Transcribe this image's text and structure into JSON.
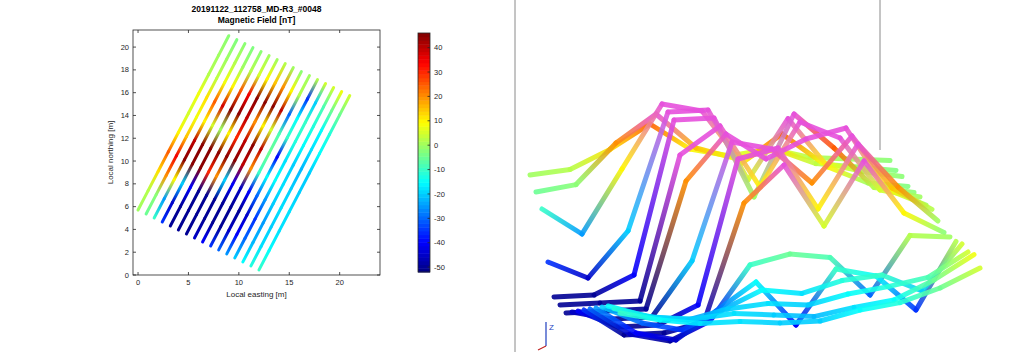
{
  "chart_data": {
    "type": "line",
    "title": "20191122_112758_MD-R3_#0048",
    "subtitle": "Magnetic Field [nT]",
    "x_label": "Local easting [m]",
    "y_label": "Local northing [m]",
    "xlim": [
      -0.5,
      24
    ],
    "ylim": [
      0,
      21.5
    ],
    "xticks": [
      0,
      5,
      10,
      15,
      20
    ],
    "yticks": [
      0,
      2,
      4,
      6,
      8,
      10,
      12,
      14,
      16,
      18,
      20
    ],
    "grid": false,
    "colorbar": {
      "range": [
        -52,
        46
      ],
      "ticks": [
        -50,
        -40,
        -30,
        -20,
        -10,
        0,
        10,
        20,
        30,
        40
      ]
    },
    "view_3d": {
      "axis_label": "Z"
    },
    "tracks": [
      {
        "x": [
          0,
          1,
          2,
          3,
          4,
          5,
          6,
          7,
          8,
          9
        ],
        "y": [
          5.7,
          7.4,
          9.1,
          10.8,
          12.5,
          14.2,
          15.9,
          17.6,
          19.3,
          21.0
        ],
        "values": [
          0,
          2,
          12,
          25,
          10,
          5,
          8,
          2,
          0,
          -2
        ]
      },
      {
        "x": [
          0.8,
          1.8,
          2.8,
          3.8,
          4.8,
          5.8,
          6.8,
          7.8,
          8.8,
          9.8
        ],
        "y": [
          5.35,
          7.05,
          8.75,
          10.45,
          12.15,
          13.85,
          15.55,
          17.25,
          18.95,
          20.65
        ],
        "values": [
          -5,
          -2,
          20,
          35,
          15,
          8,
          12,
          3,
          0,
          -3
        ]
      },
      {
        "x": [
          1.6,
          2.6,
          3.6,
          4.6,
          5.6,
          6.6,
          7.6,
          8.6,
          9.6,
          10.6
        ],
        "y": [
          5.0,
          6.7,
          8.4,
          10.1,
          11.8,
          13.5,
          15.2,
          16.9,
          18.6,
          20.3
        ],
        "values": [
          -10,
          -25,
          10,
          45,
          40,
          10,
          25,
          8,
          2,
          -2
        ]
      },
      {
        "x": [
          2.4,
          3.4,
          4.4,
          5.4,
          6.4,
          7.4,
          8.4,
          9.4,
          10.4,
          11.4
        ],
        "y": [
          4.65,
          6.35,
          8.05,
          9.75,
          11.45,
          13.15,
          14.85,
          16.55,
          18.25,
          19.95
        ],
        "values": [
          -35,
          -45,
          -20,
          45,
          45,
          5,
          38,
          10,
          0,
          -3
        ]
      },
      {
        "x": [
          3.2,
          4.2,
          5.2,
          6.2,
          7.2,
          8.2,
          9.2,
          10.2,
          11.2,
          12.2
        ],
        "y": [
          4.3,
          6.0,
          7.7,
          9.4,
          11.1,
          12.8,
          14.5,
          16.2,
          17.9,
          19.6
        ],
        "values": [
          -50,
          -50,
          -40,
          45,
          45,
          0,
          45,
          25,
          2,
          -2
        ]
      },
      {
        "x": [
          4,
          5,
          6,
          7,
          8,
          9,
          10,
          11,
          12,
          13
        ],
        "y": [
          3.95,
          5.65,
          7.35,
          9.05,
          10.75,
          12.45,
          14.15,
          15.85,
          17.55,
          19.25
        ],
        "values": [
          -50,
          -50,
          -50,
          30,
          45,
          10,
          45,
          35,
          5,
          0
        ]
      },
      {
        "x": [
          4.8,
          5.8,
          6.8,
          7.8,
          8.8,
          9.8,
          10.8,
          11.8,
          12.8,
          13.8
        ],
        "y": [
          3.6,
          5.3,
          7.0,
          8.7,
          10.4,
          12.1,
          13.8,
          15.5,
          17.2,
          18.9
        ],
        "values": [
          -50,
          -50,
          -50,
          20,
          45,
          30,
          40,
          45,
          10,
          0
        ]
      },
      {
        "x": [
          5.6,
          6.6,
          7.6,
          8.6,
          9.6,
          10.6,
          11.6,
          12.6,
          13.6,
          14.6
        ],
        "y": [
          3.25,
          4.95,
          6.65,
          8.35,
          10.05,
          11.75,
          13.45,
          15.15,
          16.85,
          18.55
        ],
        "values": [
          -45,
          -50,
          -50,
          -20,
          45,
          40,
          20,
          45,
          15,
          2
        ]
      },
      {
        "x": [
          6.4,
          7.4,
          8.4,
          9.4,
          10.4,
          11.4,
          12.4,
          13.4,
          14.4,
          15.4
        ],
        "y": [
          2.9,
          4.6,
          6.3,
          8.0,
          9.7,
          11.4,
          13.1,
          14.8,
          16.5,
          18.2
        ],
        "values": [
          -40,
          -50,
          -50,
          -40,
          40,
          45,
          10,
          45,
          20,
          0
        ]
      },
      {
        "x": [
          7.2,
          8.2,
          9.2,
          10.2,
          11.2,
          12.2,
          13.2,
          14.2,
          15.2,
          16.2
        ],
        "y": [
          2.55,
          4.25,
          5.95,
          7.65,
          9.35,
          11.05,
          12.75,
          14.45,
          16.15,
          17.85
        ],
        "values": [
          -35,
          -50,
          -50,
          -45,
          20,
          40,
          5,
          40,
          10,
          -2
        ]
      },
      {
        "x": [
          8,
          9,
          10,
          11,
          12,
          13,
          14,
          15,
          16,
          17
        ],
        "y": [
          2.2,
          3.9,
          5.6,
          7.3,
          9.0,
          10.7,
          12.4,
          14.1,
          15.8,
          17.5
        ],
        "values": [
          -30,
          -45,
          -50,
          -40,
          -10,
          -5,
          -8,
          -30,
          2,
          0
        ]
      },
      {
        "x": [
          8.8,
          9.8,
          10.8,
          11.8,
          12.8,
          13.8,
          14.8,
          15.8,
          16.8,
          17.8
        ],
        "y": [
          1.85,
          3.55,
          5.25,
          6.95,
          8.65,
          10.35,
          12.05,
          13.75,
          15.45,
          17.15
        ],
        "values": [
          -25,
          -40,
          -45,
          -30,
          -15,
          -40,
          -10,
          -15,
          -35,
          2
        ]
      },
      {
        "x": [
          9.6,
          10.6,
          11.6,
          12.6,
          13.6,
          14.6,
          15.6,
          16.6,
          17.6,
          18.6
        ],
        "y": [
          1.5,
          3.2,
          4.9,
          6.6,
          8.3,
          10.0,
          11.7,
          13.4,
          15.1,
          16.8
        ],
        "values": [
          -20,
          -30,
          -35,
          -25,
          -15,
          -18,
          -12,
          -10,
          -20,
          5
        ]
      },
      {
        "x": [
          10.4,
          11.4,
          12.4,
          13.4,
          14.4,
          15.4,
          16.4,
          17.4,
          18.4,
          19.4
        ],
        "y": [
          1.15,
          2.85,
          4.55,
          6.25,
          7.95,
          9.65,
          11.35,
          13.05,
          14.75,
          16.45
        ],
        "values": [
          -15,
          -22,
          -25,
          -20,
          -18,
          -20,
          -15,
          -12,
          -8,
          5
        ]
      },
      {
        "x": [
          11.2,
          12.2,
          13.2,
          14.2,
          15.2,
          16.2,
          17.2,
          18.2,
          19.2,
          20.2
        ],
        "y": [
          0.8,
          2.5,
          4.2,
          5.9,
          7.6,
          9.3,
          11.0,
          12.7,
          14.4,
          16.1
        ],
        "values": [
          -12,
          -18,
          -20,
          -18,
          -20,
          -22,
          -18,
          -15,
          -5,
          8
        ]
      },
      {
        "x": [
          12,
          13,
          14,
          15,
          16,
          17,
          18,
          19,
          20,
          21
        ],
        "y": [
          0.45,
          2.15,
          3.85,
          5.55,
          7.25,
          8.95,
          10.65,
          12.35,
          14.05,
          15.75
        ],
        "values": [
          -10,
          -15,
          -18,
          -18,
          -20,
          -20,
          -15,
          -12,
          -5,
          5
        ]
      }
    ]
  }
}
